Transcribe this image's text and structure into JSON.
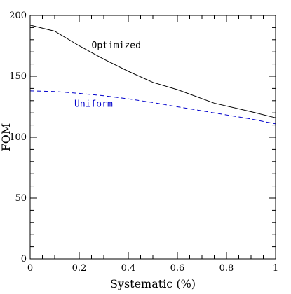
{
  "chart_data": {
    "type": "line",
    "xlabel": "Systematic (%)",
    "ylabel": "FOM",
    "xlim": [
      0,
      1
    ],
    "ylim": [
      0,
      200
    ],
    "grid": false,
    "x_ticks": [
      0,
      0.2,
      0.4,
      0.6,
      0.8,
      1
    ],
    "x_tick_labels": [
      "0",
      "0.2",
      "0.4",
      "0.6",
      "0.8",
      "1"
    ],
    "y_ticks": [
      0,
      50,
      100,
      150,
      200
    ],
    "y_tick_labels": [
      "0",
      "50",
      "100",
      "150",
      "200"
    ],
    "series": [
      {
        "name": "Optimized",
        "color": "#000000",
        "dash": "solid",
        "x": [
          0,
          0.1,
          0.2,
          0.3,
          0.4,
          0.5,
          0.6,
          0.75,
          0.9,
          1.0
        ],
        "y": [
          192,
          187,
          175,
          164,
          154,
          145,
          139,
          128,
          121,
          116
        ]
      },
      {
        "name": "Uniform",
        "color": "#0000cc",
        "dash": "dashed",
        "x": [
          0,
          0.1,
          0.2,
          0.3,
          0.4,
          0.5,
          0.6,
          0.75,
          0.9,
          1.0
        ],
        "y": [
          138,
          137.5,
          136,
          134,
          131.5,
          128.5,
          125,
          120,
          115,
          111
        ]
      }
    ],
    "annotations": [
      {
        "text": "Optimized",
        "series": "Optimized",
        "x": 0.25,
        "y": 173
      },
      {
        "text": "Uniform",
        "series": "Uniform",
        "x": 0.18,
        "y": 125
      }
    ]
  }
}
